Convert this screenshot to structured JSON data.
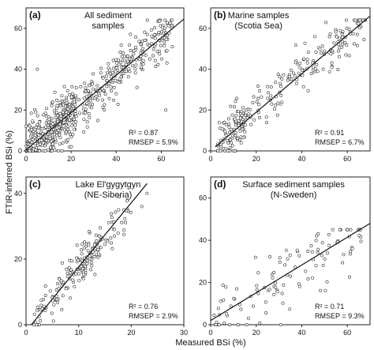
{
  "figure": {
    "xlabel": "Measured BSi (%)",
    "ylabel": "FTIR-inferred BSi (%)"
  },
  "chart_data": [
    {
      "type": "scatter",
      "panel": "(a)",
      "title_lines": [
        "All sediment",
        "samples"
      ],
      "xlim": [
        0,
        70
      ],
      "ylim": [
        0,
        70
      ],
      "xticks": [
        "0",
        "20",
        "40",
        "60"
      ],
      "yticks": [
        "0",
        "20",
        "40",
        "60"
      ],
      "r2_label": "R² = 0.87",
      "rmsep_label": "RMSEP = 5.9%",
      "fit_line": {
        "x": [
          0,
          70
        ],
        "y": [
          0.5,
          64.5
        ]
      },
      "points": {
        "x": [],
        "y": []
      }
    },
    {
      "type": "scatter",
      "panel": "(b)",
      "title_lines": [
        "Marine samples",
        "(Scotia Sea)"
      ],
      "xlim": [
        0,
        70
      ],
      "ylim": [
        0,
        70
      ],
      "xticks": [
        "0",
        "20",
        "40",
        "60"
      ],
      "yticks": [
        "0",
        "20",
        "40",
        "60"
      ],
      "r2_label": "R² = 0.91",
      "rmsep_label": "RMSEP = 6.7%",
      "fit_line": {
        "x": [
          2,
          70
        ],
        "y": [
          2,
          66
        ]
      },
      "points": {
        "x": [],
        "y": []
      }
    },
    {
      "type": "scatter",
      "panel": "(c)",
      "title_lines": [
        "Lake El'gygytgyn",
        "(NE-Siberia)"
      ],
      "xlim": [
        0,
        30
      ],
      "ylim": [
        0,
        45
      ],
      "xticks": [
        "0",
        "10",
        "20",
        "30"
      ],
      "yticks": [
        "0",
        "20",
        "40"
      ],
      "r2_label": "R² = 0.76",
      "rmsep_label": "RMSEP = 2.9%",
      "fit_line": {
        "x": [
          1,
          23
        ],
        "y": [
          0,
          43
        ]
      },
      "points": {
        "x": [],
        "y": []
      }
    },
    {
      "type": "scatter",
      "panel": "(d)",
      "title_lines": [
        "Surface sediment samples",
        "(N-Sweden)"
      ],
      "xlim": [
        0,
        70
      ],
      "ylim": [
        0,
        70
      ],
      "xticks": [
        "0",
        "20",
        "40",
        "60"
      ],
      "yticks": [
        "0",
        "20",
        "40",
        "60"
      ],
      "r2_label": "R² = 0.71",
      "rmsep_label": "RMSEP = 9.3%",
      "fit_line": {
        "x": [
          0,
          70
        ],
        "y": [
          2,
          48
        ]
      },
      "points": {
        "x": [],
        "y": []
      }
    }
  ]
}
